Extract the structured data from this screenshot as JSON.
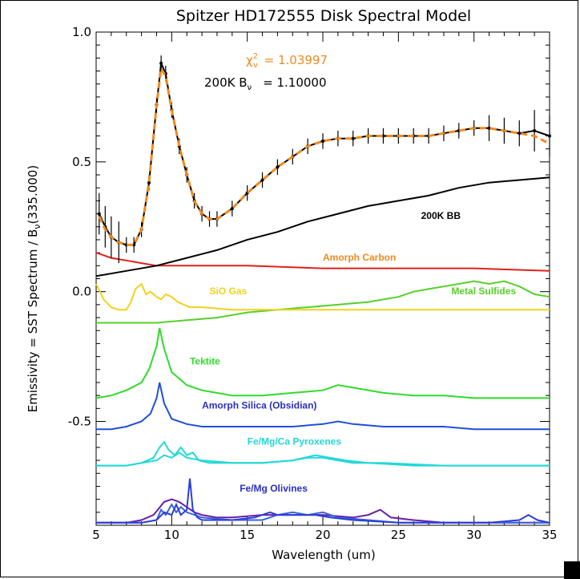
{
  "chart_data": {
    "type": "line",
    "title": "Spitzer HD172555 Disk Spectral Model",
    "xlabel": "Wavelength (um)",
    "ylabel_parts": [
      "Emissivity   = SST Spectrum / B",
      "ν",
      "(335.000)"
    ],
    "xlim": [
      5,
      35
    ],
    "ylim": [
      -0.9,
      1.0
    ],
    "xticks": [
      5,
      10,
      15,
      20,
      25,
      30,
      35
    ],
    "yticks": [
      1.0,
      0.5,
      0.0,
      -0.5
    ],
    "xtick_labels": [
      "5",
      "10",
      "15",
      "20",
      "25",
      "30",
      "35"
    ],
    "ytick_labels": [
      "1.0",
      "0.5",
      "0.0",
      "-0.5"
    ],
    "fit_stats": {
      "chi_symbol": "χ",
      "chi_super": "2",
      "chi_sub": "ν",
      "chi_value": "= 1.03997",
      "bb_label": "200K B",
      "bb_sub": "ν",
      "bb_value": "= 1.10000"
    },
    "colors": {
      "data": "#000000",
      "model": "#f08a1e",
      "bb": "#000000",
      "carbon": "#e0201c",
      "sio": "#f2d21a",
      "sulfides": "#55d02a",
      "tektite": "#2fdb2a",
      "silica": "#1f4fd8",
      "pyroxene": "#22d8d8",
      "olivine_a": "#6a1fa8",
      "olivine_b": "#2a3fd8",
      "olivine_c": "#3a63e0"
    },
    "series": [
      {
        "name": "SST Spectrum",
        "label": "",
        "style": "errorbar",
        "x": [
          5.2,
          5.6,
          6.0,
          6.5,
          7.0,
          7.5,
          8.0,
          8.5,
          9.0,
          9.3,
          9.6,
          10.0,
          10.5,
          11.0,
          11.5,
          12.0,
          12.5,
          13.0,
          14.0,
          15.0,
          16.0,
          17.0,
          18.0,
          19.0,
          20.0,
          21.0,
          22.0,
          23.0,
          24.0,
          25.0,
          26.0,
          27.0,
          28.0,
          29.0,
          30.0,
          31.0,
          32.0,
          33.0,
          34.0,
          35.0
        ],
        "y": [
          0.3,
          0.25,
          0.21,
          0.19,
          0.18,
          0.18,
          0.24,
          0.42,
          0.72,
          0.88,
          0.84,
          0.7,
          0.56,
          0.45,
          0.35,
          0.3,
          0.28,
          0.28,
          0.32,
          0.38,
          0.43,
          0.48,
          0.52,
          0.56,
          0.58,
          0.59,
          0.59,
          0.6,
          0.6,
          0.6,
          0.6,
          0.6,
          0.61,
          0.62,
          0.63,
          0.63,
          0.62,
          0.61,
          0.62,
          0.6
        ]
      },
      {
        "name": "Model fit",
        "label": "",
        "style": "dashed",
        "x": [
          5.2,
          5.6,
          6.0,
          6.5,
          7.0,
          7.5,
          8.0,
          8.5,
          9.0,
          9.3,
          9.6,
          10.0,
          10.5,
          11.0,
          11.5,
          12.0,
          12.5,
          13.0,
          14.0,
          15.0,
          16.0,
          17.0,
          18.0,
          19.0,
          20.0,
          21.0,
          22.0,
          23.0,
          24.0,
          25.0,
          26.0,
          27.0,
          28.0,
          29.0,
          30.0,
          31.0,
          32.0,
          33.0,
          34.0,
          35.0
        ],
        "y": [
          0.29,
          0.24,
          0.21,
          0.19,
          0.18,
          0.18,
          0.24,
          0.42,
          0.72,
          0.86,
          0.83,
          0.7,
          0.56,
          0.45,
          0.35,
          0.3,
          0.28,
          0.28,
          0.32,
          0.38,
          0.43,
          0.48,
          0.52,
          0.56,
          0.58,
          0.59,
          0.59,
          0.6,
          0.6,
          0.6,
          0.6,
          0.6,
          0.61,
          0.62,
          0.63,
          0.63,
          0.62,
          0.61,
          0.6,
          0.57
        ]
      },
      {
        "name": "200K BB",
        "label": "200K BB",
        "label_color": "#000000",
        "label_at": [
          26.5,
          0.28
        ],
        "x": [
          5,
          7,
          9,
          11,
          13,
          15,
          17,
          19,
          21,
          23,
          25,
          27,
          29,
          31,
          33,
          35
        ],
        "y": [
          0.06,
          0.08,
          0.1,
          0.13,
          0.16,
          0.2,
          0.23,
          0.27,
          0.3,
          0.33,
          0.35,
          0.37,
          0.4,
          0.42,
          0.43,
          0.44
        ]
      },
      {
        "name": "Amorph Carbon",
        "label": "Amorph Carbon",
        "label_color": "#f08a1e",
        "label_at": [
          20.0,
          0.12
        ],
        "x": [
          5,
          6,
          7,
          8,
          9,
          10,
          12,
          15,
          20,
          25,
          30,
          35
        ],
        "y": [
          0.15,
          0.13,
          0.12,
          0.11,
          0.1,
          0.1,
          0.1,
          0.1,
          0.09,
          0.09,
          0.09,
          0.08
        ]
      },
      {
        "name": "SiO Gas",
        "label": "SiO Gas",
        "label_color": "#f2d21a",
        "label_at": [
          12.5,
          -0.01
        ],
        "x": [
          5.0,
          5.5,
          6.0,
          6.5,
          7.0,
          7.3,
          7.6,
          8.0,
          8.3,
          8.6,
          9.0,
          9.3,
          9.6,
          10.0,
          10.4,
          10.8,
          11.2,
          12,
          14,
          16,
          20,
          25,
          30,
          35
        ],
        "y": [
          0.03,
          -0.03,
          -0.06,
          -0.07,
          -0.07,
          -0.04,
          0.01,
          0.03,
          -0.01,
          0.0,
          -0.02,
          -0.03,
          -0.01,
          -0.02,
          -0.04,
          -0.05,
          -0.06,
          -0.06,
          -0.07,
          -0.07,
          -0.07,
          -0.07,
          -0.07,
          -0.07
        ]
      },
      {
        "name": "Metal Sulfides",
        "label": "Metal Sulfides",
        "label_color": "#55d02a",
        "label_at": [
          28.5,
          -0.01
        ],
        "x": [
          5,
          7,
          9,
          11,
          13,
          15,
          17,
          19,
          21,
          23,
          25,
          26,
          27,
          28,
          29,
          30,
          31,
          32,
          33,
          34,
          35
        ],
        "y": [
          -0.12,
          -0.12,
          -0.12,
          -0.11,
          -0.1,
          -0.08,
          -0.07,
          -0.06,
          -0.05,
          -0.04,
          -0.02,
          0.0,
          0.01,
          0.02,
          0.03,
          0.04,
          0.03,
          0.04,
          0.02,
          -0.01,
          -0.02
        ]
      },
      {
        "name": "Tektite",
        "label": "Tektite",
        "label_color": "#2fdb2a",
        "label_at": [
          11.2,
          -0.28
        ],
        "x": [
          5,
          6,
          7,
          8,
          8.5,
          9.0,
          9.2,
          9.5,
          10,
          11,
          12,
          14,
          16,
          18,
          20,
          21,
          22,
          24,
          26,
          28,
          30,
          32,
          35
        ],
        "y": [
          -0.41,
          -0.4,
          -0.38,
          -0.35,
          -0.3,
          -0.21,
          -0.14,
          -0.22,
          -0.31,
          -0.36,
          -0.38,
          -0.4,
          -0.4,
          -0.39,
          -0.38,
          -0.36,
          -0.37,
          -0.39,
          -0.4,
          -0.4,
          -0.41,
          -0.41,
          -0.41
        ]
      },
      {
        "name": "Amorph Silica (Obsidian)",
        "label": "Amorph Silica (Obsidian)",
        "label_color": "#2a2fbf",
        "label_at": [
          12.0,
          -0.45
        ],
        "x": [
          5,
          6,
          7,
          8,
          8.6,
          9.0,
          9.2,
          9.5,
          10,
          11,
          12,
          14,
          16,
          18,
          20,
          21,
          22,
          24,
          26,
          28,
          30,
          32,
          35
        ],
        "y": [
          -0.53,
          -0.53,
          -0.52,
          -0.5,
          -0.47,
          -0.41,
          -0.35,
          -0.43,
          -0.49,
          -0.51,
          -0.52,
          -0.52,
          -0.52,
          -0.52,
          -0.51,
          -0.5,
          -0.51,
          -0.52,
          -0.52,
          -0.52,
          -0.53,
          -0.53,
          -0.53
        ]
      },
      {
        "name": "Fe/Mg/Ca Pyroxenes",
        "label": "Fe/Mg/Ca Pyroxenes",
        "label_color": "#22d8d8",
        "label_at": [
          15.0,
          -0.59
        ],
        "x": [
          5,
          7,
          8,
          8.8,
          9.2,
          9.5,
          9.8,
          10.2,
          10.6,
          11.0,
          11.4,
          11.8,
          12.5,
          14,
          16,
          18,
          19.5,
          20.5,
          21.5,
          23,
          26,
          30,
          35
        ],
        "y": [
          -0.67,
          -0.67,
          -0.66,
          -0.64,
          -0.6,
          -0.58,
          -0.61,
          -0.63,
          -0.6,
          -0.63,
          -0.62,
          -0.65,
          -0.66,
          -0.66,
          -0.66,
          -0.65,
          -0.63,
          -0.64,
          -0.65,
          -0.66,
          -0.67,
          -0.67,
          -0.67
        ]
      },
      {
        "name": "Fe/Mg/Ca Pyroxenes 2",
        "label": "",
        "label_color": "#22d8d8",
        "x": [
          5,
          7,
          8,
          9,
          9.5,
          10,
          10.5,
          11,
          12,
          14,
          16,
          18,
          19,
          20,
          21,
          22,
          24,
          28,
          35
        ],
        "y": [
          -0.67,
          -0.67,
          -0.66,
          -0.65,
          -0.63,
          -0.64,
          -0.62,
          -0.64,
          -0.65,
          -0.66,
          -0.66,
          -0.65,
          -0.64,
          -0.64,
          -0.65,
          -0.66,
          -0.66,
          -0.67,
          -0.67
        ]
      },
      {
        "name": "Fe/Mg Olivines",
        "label": "Fe/Mg Olivines",
        "label_color": "#2a2fbf",
        "label_at": [
          14.5,
          -0.77
        ],
        "x": [
          5,
          7,
          8,
          8.8,
          9.5,
          10,
          10.5,
          11,
          11.5,
          12,
          13,
          14,
          16,
          18,
          20,
          22,
          23,
          23.8,
          24.5,
          26,
          28,
          30,
          32,
          33.5,
          34,
          35
        ],
        "y": [
          -0.89,
          -0.89,
          -0.88,
          -0.86,
          -0.81,
          -0.8,
          -0.81,
          -0.83,
          -0.85,
          -0.86,
          -0.87,
          -0.87,
          -0.86,
          -0.86,
          -0.86,
          -0.87,
          -0.86,
          -0.84,
          -0.87,
          -0.88,
          -0.89,
          -0.89,
          -0.89,
          -0.89,
          -0.89,
          -0.89
        ]
      },
      {
        "name": "Fe/Mg Olivines 2",
        "label": "",
        "label_color": "#2a3fd8",
        "x": [
          5,
          8,
          9,
          9.5,
          10,
          10.3,
          10.6,
          11.0,
          11.2,
          11.4,
          11.7,
          12,
          14,
          15.5,
          16.5,
          17,
          18,
          19.5,
          20.5,
          22,
          25,
          28,
          31,
          33,
          33.6,
          34.2,
          35
        ],
        "y": [
          -0.89,
          -0.89,
          -0.88,
          -0.85,
          -0.86,
          -0.82,
          -0.86,
          -0.84,
          -0.72,
          -0.84,
          -0.87,
          -0.88,
          -0.88,
          -0.87,
          -0.85,
          -0.86,
          -0.86,
          -0.86,
          -0.87,
          -0.88,
          -0.89,
          -0.89,
          -0.89,
          -0.88,
          -0.86,
          -0.88,
          -0.89
        ]
      },
      {
        "name": "Fe/Mg Olivines 3",
        "label": "",
        "label_color": "#3a63e0",
        "x": [
          5,
          8,
          9,
          9.3,
          9.6,
          10,
          10.3,
          10.6,
          11,
          12,
          14,
          16,
          17,
          18,
          19,
          20,
          21,
          23,
          25,
          28,
          32,
          35
        ],
        "y": [
          -0.89,
          -0.89,
          -0.88,
          -0.84,
          -0.86,
          -0.82,
          -0.85,
          -0.83,
          -0.85,
          -0.87,
          -0.88,
          -0.88,
          -0.86,
          -0.85,
          -0.86,
          -0.85,
          -0.87,
          -0.88,
          -0.89,
          -0.89,
          -0.89,
          -0.89
        ]
      }
    ]
  }
}
